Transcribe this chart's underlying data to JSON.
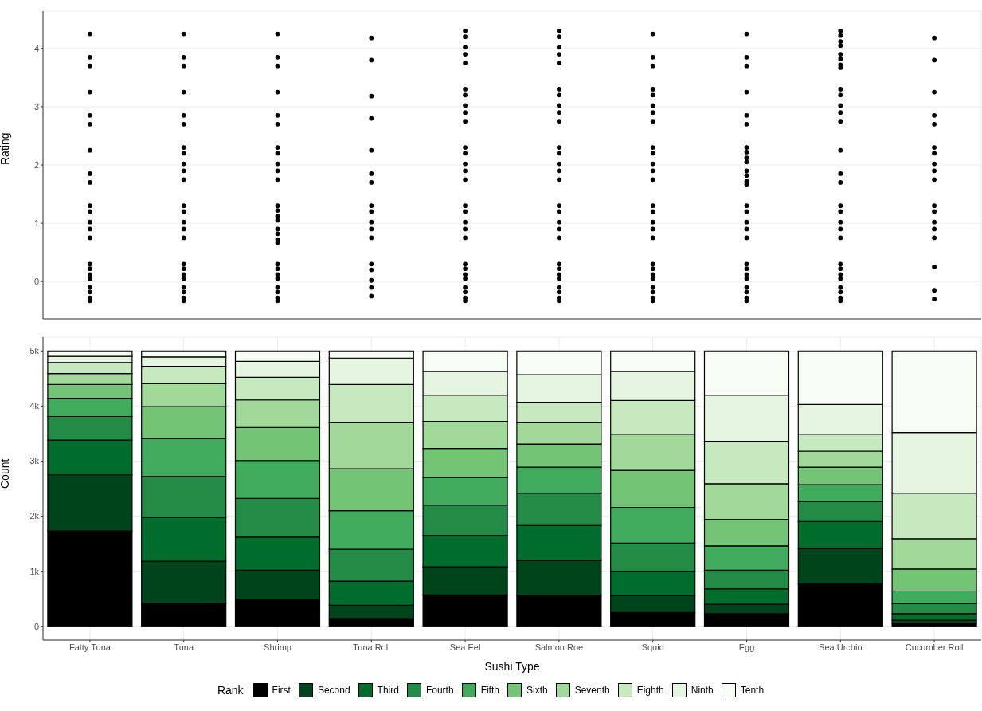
{
  "chart_data": [
    {
      "type": "scatter",
      "ylabel": "Rating",
      "color": "#000000",
      "marker": "circle",
      "grid": true,
      "tick_labels": "y",
      "categories": [
        "Fatty Tuna",
        "Tuna",
        "Shrimp",
        "Tuna Roll",
        "Sea Eel",
        "Salmon Roe",
        "Squid",
        "Egg",
        "Sea Urchin",
        "Cucumber Roll"
      ],
      "ylim": [
        -0.64,
        4.64
      ],
      "yticks": [
        0,
        1,
        2,
        3,
        4
      ],
      "series": [
        {
          "x": [
            "Fatty Tuna",
            "Fatty Tuna",
            "Fatty Tuna",
            "Fatty Tuna",
            "Fatty Tuna",
            "Fatty Tuna",
            "Fatty Tuna",
            "Fatty Tuna",
            "Fatty Tuna",
            "Fatty Tuna",
            "Fatty Tuna",
            "Fatty Tuna",
            "Fatty Tuna",
            "Fatty Tuna",
            "Fatty Tuna",
            "Fatty Tuna",
            "Fatty Tuna",
            "Fatty Tuna",
            "Fatty Tuna",
            "Fatty Tuna",
            "Fatty Tuna",
            "Fatty Tuna"
          ],
          "values": [
            3.85,
            4.25,
            3.7,
            2.85,
            3.25,
            2.7,
            1.85,
            2.25,
            1.7,
            1.2,
            0.75,
            1.3,
            0.9,
            1.02,
            -0.28,
            0.22,
            -0.1,
            0.3,
            0.05,
            -0.33,
            0.12,
            -0.18
          ]
        },
        {
          "x": [
            "Tuna",
            "Tuna",
            "Tuna",
            "Tuna",
            "Tuna",
            "Tuna",
            "Tuna",
            "Tuna",
            "Tuna",
            "Tuna",
            "Tuna",
            "Tuna",
            "Tuna",
            "Tuna",
            "Tuna",
            "Tuna",
            "Tuna",
            "Tuna",
            "Tuna",
            "Tuna",
            "Tuna",
            "Tuna",
            "Tuna",
            "Tuna"
          ],
          "values": [
            3.85,
            4.25,
            3.7,
            2.85,
            3.25,
            2.7,
            2.2,
            1.75,
            2.3,
            1.9,
            2.02,
            1.2,
            0.75,
            1.3,
            0.9,
            1.02,
            -0.28,
            0.22,
            -0.1,
            0.3,
            0.05,
            -0.33,
            0.12,
            -0.18
          ]
        },
        {
          "x": [
            "Shrimp",
            "Shrimp",
            "Shrimp",
            "Shrimp",
            "Shrimp",
            "Shrimp",
            "Shrimp",
            "Shrimp",
            "Shrimp",
            "Shrimp",
            "Shrimp",
            "Shrimp",
            "Shrimp",
            "Shrimp",
            "Shrimp",
            "Shrimp",
            "Shrimp",
            "Shrimp",
            "Shrimp",
            "Shrimp",
            "Shrimp",
            "Shrimp",
            "Shrimp",
            "Shrimp",
            "Shrimp",
            "Shrimp",
            "Shrimp"
          ],
          "values": [
            3.85,
            4.25,
            3.7,
            2.85,
            3.25,
            2.7,
            2.2,
            1.75,
            2.3,
            1.9,
            2.02,
            0.72,
            1.22,
            0.9,
            1.3,
            1.05,
            0.67,
            1.12,
            0.82,
            -0.28,
            0.22,
            -0.1,
            0.3,
            0.05,
            -0.33,
            0.12,
            -0.18
          ]
        },
        {
          "x": [
            "Tuna Roll",
            "Tuna Roll",
            "Tuna Roll",
            "Tuna Roll",
            "Tuna Roll",
            "Tuna Roll",
            "Tuna Roll",
            "Tuna Roll",
            "Tuna Roll",
            "Tuna Roll",
            "Tuna Roll",
            "Tuna Roll",
            "Tuna Roll",
            "Tuna Roll",
            "Tuna Roll",
            "Tuna Roll",
            "Tuna Roll"
          ],
          "values": [
            4.18,
            3.8,
            3.18,
            2.8,
            1.85,
            2.25,
            1.7,
            1.2,
            0.75,
            1.3,
            0.9,
            1.02,
            0.2,
            -0.25,
            0.3,
            -0.1,
            0.02
          ]
        },
        {
          "x": [
            "Sea Eel",
            "Sea Eel",
            "Sea Eel",
            "Sea Eel",
            "Sea Eel",
            "Sea Eel",
            "Sea Eel",
            "Sea Eel",
            "Sea Eel",
            "Sea Eel",
            "Sea Eel",
            "Sea Eel",
            "Sea Eel",
            "Sea Eel",
            "Sea Eel",
            "Sea Eel",
            "Sea Eel",
            "Sea Eel",
            "Sea Eel",
            "Sea Eel",
            "Sea Eel",
            "Sea Eel",
            "Sea Eel",
            "Sea Eel",
            "Sea Eel",
            "Sea Eel",
            "Sea Eel",
            "Sea Eel"
          ],
          "values": [
            4.2,
            3.75,
            4.3,
            3.9,
            4.02,
            3.2,
            2.75,
            3.3,
            2.9,
            3.02,
            2.2,
            1.75,
            2.3,
            1.9,
            2.02,
            1.2,
            0.75,
            1.3,
            0.9,
            1.02,
            -0.28,
            0.22,
            -0.1,
            0.3,
            0.05,
            -0.33,
            0.12,
            -0.18
          ]
        },
        {
          "x": [
            "Salmon Roe",
            "Salmon Roe",
            "Salmon Roe",
            "Salmon Roe",
            "Salmon Roe",
            "Salmon Roe",
            "Salmon Roe",
            "Salmon Roe",
            "Salmon Roe",
            "Salmon Roe",
            "Salmon Roe",
            "Salmon Roe",
            "Salmon Roe",
            "Salmon Roe",
            "Salmon Roe",
            "Salmon Roe",
            "Salmon Roe",
            "Salmon Roe",
            "Salmon Roe",
            "Salmon Roe",
            "Salmon Roe",
            "Salmon Roe",
            "Salmon Roe",
            "Salmon Roe",
            "Salmon Roe",
            "Salmon Roe",
            "Salmon Roe",
            "Salmon Roe"
          ],
          "values": [
            4.2,
            3.75,
            4.3,
            3.9,
            4.02,
            3.2,
            2.75,
            3.3,
            2.9,
            3.02,
            2.2,
            1.75,
            2.3,
            1.9,
            2.02,
            1.2,
            0.75,
            1.3,
            0.9,
            1.02,
            -0.28,
            0.22,
            -0.1,
            0.3,
            0.05,
            -0.33,
            0.12,
            -0.18
          ]
        },
        {
          "x": [
            "Squid",
            "Squid",
            "Squid",
            "Squid",
            "Squid",
            "Squid",
            "Squid",
            "Squid",
            "Squid",
            "Squid",
            "Squid",
            "Squid",
            "Squid",
            "Squid",
            "Squid",
            "Squid",
            "Squid",
            "Squid",
            "Squid",
            "Squid",
            "Squid",
            "Squid",
            "Squid",
            "Squid",
            "Squid",
            "Squid"
          ],
          "values": [
            3.85,
            4.25,
            3.7,
            3.2,
            2.75,
            3.3,
            2.9,
            3.02,
            2.2,
            1.75,
            2.3,
            1.9,
            2.02,
            1.2,
            0.75,
            1.3,
            0.9,
            1.02,
            -0.28,
            0.22,
            -0.1,
            0.3,
            0.05,
            -0.33,
            0.12,
            -0.18
          ]
        },
        {
          "x": [
            "Egg",
            "Egg",
            "Egg",
            "Egg",
            "Egg",
            "Egg",
            "Egg",
            "Egg",
            "Egg",
            "Egg",
            "Egg",
            "Egg",
            "Egg",
            "Egg",
            "Egg",
            "Egg",
            "Egg",
            "Egg",
            "Egg",
            "Egg",
            "Egg",
            "Egg",
            "Egg",
            "Egg",
            "Egg",
            "Egg",
            "Egg"
          ],
          "values": [
            3.85,
            4.25,
            3.7,
            2.85,
            3.25,
            2.7,
            1.72,
            2.22,
            1.9,
            2.3,
            2.05,
            1.67,
            2.12,
            1.82,
            1.2,
            0.75,
            1.3,
            0.9,
            1.02,
            -0.28,
            0.22,
            -0.1,
            0.3,
            0.05,
            -0.33,
            0.12,
            -0.18
          ]
        },
        {
          "x": [
            "Sea Urchin",
            "Sea Urchin",
            "Sea Urchin",
            "Sea Urchin",
            "Sea Urchin",
            "Sea Urchin",
            "Sea Urchin",
            "Sea Urchin",
            "Sea Urchin",
            "Sea Urchin",
            "Sea Urchin",
            "Sea Urchin",
            "Sea Urchin",
            "Sea Urchin",
            "Sea Urchin",
            "Sea Urchin",
            "Sea Urchin",
            "Sea Urchin",
            "Sea Urchin",
            "Sea Urchin",
            "Sea Urchin",
            "Sea Urchin",
            "Sea Urchin",
            "Sea Urchin",
            "Sea Urchin",
            "Sea Urchin",
            "Sea Urchin",
            "Sea Urchin",
            "Sea Urchin"
          ],
          "values": [
            3.72,
            4.22,
            3.9,
            4.3,
            4.05,
            3.67,
            4.12,
            3.82,
            3.2,
            2.75,
            3.3,
            2.9,
            3.02,
            1.85,
            2.25,
            1.7,
            1.2,
            0.75,
            1.3,
            0.9,
            1.02,
            -0.28,
            0.22,
            -0.1,
            0.3,
            0.05,
            -0.33,
            0.12,
            -0.18
          ]
        },
        {
          "x": [
            "Cucumber Roll",
            "Cucumber Roll",
            "Cucumber Roll",
            "Cucumber Roll",
            "Cucumber Roll",
            "Cucumber Roll",
            "Cucumber Roll",
            "Cucumber Roll",
            "Cucumber Roll",
            "Cucumber Roll",
            "Cucumber Roll",
            "Cucumber Roll",
            "Cucumber Roll",
            "Cucumber Roll",
            "Cucumber Roll",
            "Cucumber Roll",
            "Cucumber Roll",
            "Cucumber Roll"
          ],
          "values": [
            4.18,
            3.8,
            2.85,
            3.25,
            2.7,
            2.2,
            1.75,
            2.3,
            1.9,
            2.02,
            1.2,
            0.75,
            1.3,
            0.9,
            1.02,
            -0.15,
            0.25,
            -0.3
          ]
        }
      ]
    },
    {
      "type": "bar",
      "stacked": true,
      "xlabel": "Sushi Type",
      "ylabel": "Count",
      "legend_title": "Rank",
      "legend": "bottom",
      "grid": true,
      "categories": [
        "Fatty Tuna",
        "Tuna",
        "Shrimp",
        "Tuna Roll",
        "Sea Eel",
        "Salmon Roe",
        "Squid",
        "Egg",
        "Sea Urchin",
        "Cucumber Roll"
      ],
      "ylim": [
        -250,
        5250
      ],
      "yticks": [
        0,
        {
          "value": 1000,
          "label": "1k"
        },
        {
          "value": 2000,
          "label": "2k"
        },
        {
          "value": 3000,
          "label": "3k"
        },
        {
          "value": 4000,
          "label": "4k"
        },
        {
          "value": 5000,
          "label": "5k"
        }
      ],
      "series": [
        {
          "name": "First",
          "color": "#000000",
          "values": [
            1730,
            420,
            480,
            140,
            570,
            560,
            250,
            230,
            770,
            60
          ]
        },
        {
          "name": "Second",
          "color": "#00441b",
          "values": [
            1020,
            760,
            540,
            240,
            510,
            640,
            310,
            170,
            640,
            50
          ]
        },
        {
          "name": "Third",
          "color": "#006d2c",
          "values": [
            630,
            800,
            600,
            440,
            570,
            630,
            440,
            280,
            490,
            120
          ]
        },
        {
          "name": "Fourth",
          "color": "#238b45",
          "values": [
            430,
            740,
            700,
            580,
            550,
            590,
            510,
            340,
            370,
            180
          ]
        },
        {
          "name": "Fifth",
          "color": "#41ab5d",
          "values": [
            330,
            690,
            690,
            700,
            500,
            470,
            650,
            440,
            300,
            230
          ]
        },
        {
          "name": "Sixth",
          "color": "#74c476",
          "values": [
            250,
            580,
            600,
            760,
            530,
            420,
            670,
            480,
            320,
            400
          ]
        },
        {
          "name": "Seventh",
          "color": "#a1d99b",
          "values": [
            200,
            420,
            500,
            840,
            490,
            390,
            660,
            650,
            290,
            550
          ]
        },
        {
          "name": "Eighth",
          "color": "#c7e9c0",
          "values": [
            200,
            310,
            410,
            690,
            480,
            370,
            610,
            770,
            310,
            830
          ]
        },
        {
          "name": "Ninth",
          "color": "#e5f5e0",
          "values": [
            110,
            170,
            290,
            480,
            430,
            500,
            530,
            840,
            540,
            1100
          ]
        },
        {
          "name": "Tenth",
          "color": "#f7fcf5",
          "values": [
            100,
            110,
            190,
            130,
            370,
            430,
            370,
            800,
            970,
            1480
          ]
        }
      ]
    }
  ]
}
